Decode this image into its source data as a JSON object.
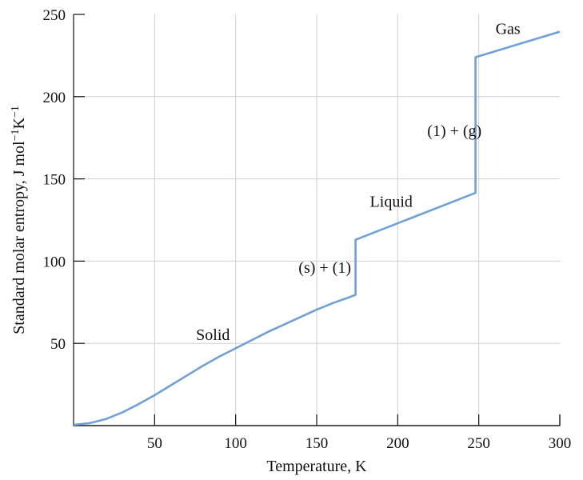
{
  "chart_data": {
    "type": "line",
    "title": "",
    "xlabel": "Temperature, K",
    "ylabel_main": "Standard molar entropy, J mol",
    "ylabel_sup1": "−1",
    "ylabel_mid": "K",
    "ylabel_sup2": "−1",
    "xlim": [
      0,
      300
    ],
    "ylim": [
      0,
      250
    ],
    "x_ticks": [
      50,
      100,
      150,
      200,
      250,
      300
    ],
    "y_ticks": [
      50,
      100,
      150,
      200,
      250
    ],
    "grid": true,
    "series": [
      {
        "color": "#6fa0d8",
        "points": [
          [
            0,
            0.5
          ],
          [
            10,
            1.5
          ],
          [
            20,
            4
          ],
          [
            30,
            8
          ],
          [
            40,
            13
          ],
          [
            50,
            18.5
          ],
          [
            60,
            24.5
          ],
          [
            70,
            30.5
          ],
          [
            80,
            36.5
          ],
          [
            90,
            42
          ],
          [
            100,
            47
          ],
          [
            110,
            52
          ],
          [
            120,
            57
          ],
          [
            130,
            61.5
          ],
          [
            140,
            66
          ],
          [
            150,
            70.5
          ],
          [
            160,
            74.5
          ],
          [
            170,
            78
          ],
          [
            174,
            79.5
          ],
          [
            174,
            113
          ],
          [
            248,
            141.5
          ],
          [
            248,
            224
          ],
          [
            300,
            239.5
          ]
        ]
      }
    ],
    "annotations": [
      {
        "text": "Solid",
        "x": 86,
        "y": 52
      },
      {
        "text": "(s) + (1)",
        "x": 155,
        "y": 93
      },
      {
        "text": "Liquid",
        "x": 196,
        "y": 133
      },
      {
        "text": "(1) + (g)",
        "x": 235,
        "y": 176
      },
      {
        "text": "Gas",
        "x": 268,
        "y": 238
      }
    ]
  }
}
